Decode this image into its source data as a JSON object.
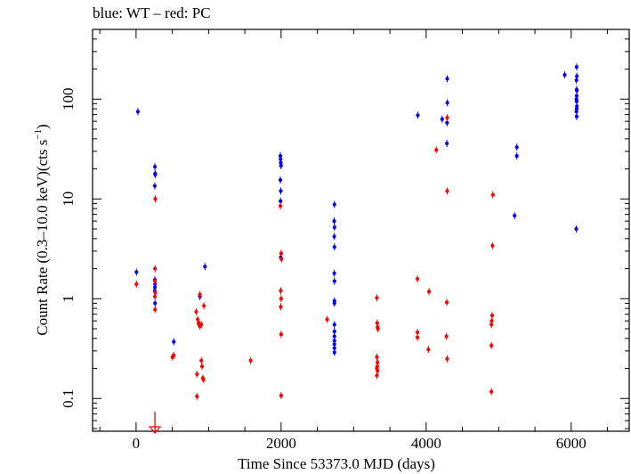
{
  "chart_data": {
    "type": "scatter",
    "title": "blue: WT – red: PC",
    "xlabel": "Time Since 53373.0 MJD (days)",
    "ylabel": "Count Rate (0.3–10.0 keV)(cts s",
    "ylabel_superscript": "−1",
    "ylabel_suffix": ")",
    "x_scale": "linear",
    "y_scale": "log",
    "xlim": [
      -600,
      6800
    ],
    "ylim": [
      0.047,
      500
    ],
    "x_ticks": [
      0,
      2000,
      4000,
      6000
    ],
    "x_tick_labels": [
      "0",
      "2000",
      "4000",
      "6000"
    ],
    "y_ticks": [
      0.1,
      1,
      10,
      100
    ],
    "y_tick_labels": [
      "0.1",
      "1",
      "10",
      "100"
    ],
    "grid": false,
    "series": [
      {
        "name": "WT",
        "color": "#0000ff",
        "points": [
          [
            5,
            1.85
          ],
          [
            25,
            75
          ],
          [
            260,
            21
          ],
          [
            262,
            18
          ],
          [
            264,
            17.5
          ],
          [
            258,
            13.5
          ],
          [
            260,
            1.55
          ],
          [
            262,
            1.4
          ],
          [
            260,
            1.3
          ],
          [
            258,
            1.2
          ],
          [
            262,
            0.9
          ],
          [
            520,
            0.37
          ],
          [
            880,
            1.05
          ],
          [
            950,
            2.1
          ],
          [
            1990,
            27
          ],
          [
            1992,
            25
          ],
          [
            1995,
            23
          ],
          [
            1998,
            21.5
          ],
          [
            1990,
            15.5
          ],
          [
            1995,
            12
          ],
          [
            1992,
            9.5
          ],
          [
            1995,
            2.6
          ],
          [
            2735,
            8.8
          ],
          [
            2732,
            6
          ],
          [
            2736,
            5.2
          ],
          [
            2733,
            4.2
          ],
          [
            2735,
            3.3
          ],
          [
            2733,
            1.8
          ],
          [
            2735,
            1.5
          ],
          [
            2735,
            0.95
          ],
          [
            2735,
            0.9
          ],
          [
            2735,
            0.55
          ],
          [
            2735,
            0.47
          ],
          [
            2735,
            0.42
          ],
          [
            2735,
            0.38
          ],
          [
            2735,
            0.35
          ],
          [
            2735,
            0.32
          ],
          [
            2735,
            0.29
          ],
          [
            3885,
            69
          ],
          [
            4220,
            63
          ],
          [
            4290,
            160
          ],
          [
            4292,
            92
          ],
          [
            4288,
            58
          ],
          [
            4286,
            36
          ],
          [
            5220,
            6.8
          ],
          [
            5250,
            33
          ],
          [
            5250,
            27
          ],
          [
            5910,
            175
          ],
          [
            6075,
            210
          ],
          [
            6078,
            170
          ],
          [
            6072,
            155
          ],
          [
            6075,
            125
          ],
          [
            6078,
            122
          ],
          [
            6075,
            108
          ],
          [
            6072,
            100
          ],
          [
            6075,
            95
          ],
          [
            6078,
            85
          ],
          [
            6075,
            80
          ],
          [
            6072,
            75
          ],
          [
            6075,
            67
          ],
          [
            6070,
            5
          ]
        ]
      },
      {
        "name": "PC",
        "color": "#ff0000",
        "points": [
          [
            5,
            1.4
          ],
          [
            265,
            10
          ],
          [
            262,
            2
          ],
          [
            260,
            1.5
          ],
          [
            265,
            1.15
          ],
          [
            260,
            1.05
          ],
          [
            262,
            0.78
          ],
          [
            520,
            0.27
          ],
          [
            500,
            0.26
          ],
          [
            830,
            0.74
          ],
          [
            850,
            0.62
          ],
          [
            860,
            0.57
          ],
          [
            870,
            0.55
          ],
          [
            880,
            0.53
          ],
          [
            900,
            0.55
          ],
          [
            880,
            0.55
          ],
          [
            840,
            0.175
          ],
          [
            840,
            0.105
          ],
          [
            900,
            0.24
          ],
          [
            910,
            0.21
          ],
          [
            920,
            0.16
          ],
          [
            930,
            0.155
          ],
          [
            935,
            0.85
          ],
          [
            880,
            1.1
          ],
          [
            1580,
            0.24
          ],
          [
            1990,
            8.5
          ],
          [
            2000,
            2.85
          ],
          [
            2005,
            2.5
          ],
          [
            1995,
            1.2
          ],
          [
            2000,
            1.0
          ],
          [
            1995,
            0.83
          ],
          [
            2000,
            0.44
          ],
          [
            2000,
            0.107
          ],
          [
            2635,
            0.62
          ],
          [
            3320,
            1.02
          ],
          [
            3325,
            0.57
          ],
          [
            3330,
            0.52
          ],
          [
            3335,
            0.5
          ],
          [
            3320,
            0.26
          ],
          [
            3330,
            0.23
          ],
          [
            3325,
            0.21
          ],
          [
            3320,
            0.2
          ],
          [
            3330,
            0.19
          ],
          [
            3320,
            0.17
          ],
          [
            3880,
            1.58
          ],
          [
            3880,
            0.46
          ],
          [
            3880,
            0.41
          ],
          [
            4040,
            1.18
          ],
          [
            4030,
            0.31
          ],
          [
            4140,
            31
          ],
          [
            4290,
            12
          ],
          [
            4285,
            0.92
          ],
          [
            4280,
            0.42
          ],
          [
            4290,
            0.25
          ],
          [
            4290,
            65
          ],
          [
            4920,
            11
          ],
          [
            4915,
            3.4
          ],
          [
            4910,
            0.68
          ],
          [
            4905,
            0.6
          ],
          [
            4900,
            0.55
          ],
          [
            4900,
            0.34
          ],
          [
            4900,
            0.117
          ]
        ]
      }
    ],
    "upper_limits": [
      {
        "series": "PC",
        "x": 260,
        "y": 0.047
      }
    ]
  }
}
